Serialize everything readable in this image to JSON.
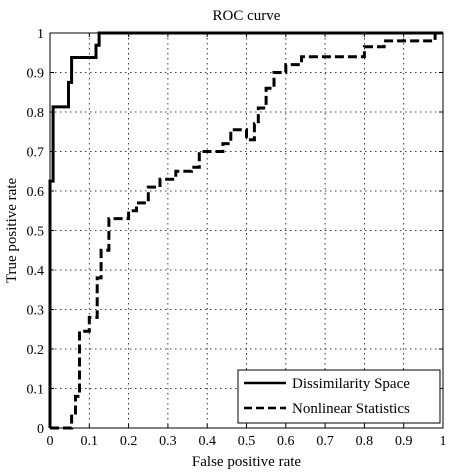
{
  "chart_data": {
    "type": "line",
    "title": "ROC curve",
    "xlabel": "False positive rate",
    "ylabel": "True positive rate",
    "xlim": [
      0,
      1
    ],
    "ylim": [
      0,
      1
    ],
    "grid": true,
    "grid_style": "dotted",
    "legend_position": "bottom-right",
    "x_ticks": [
      0,
      0.1,
      0.2,
      0.3,
      0.4,
      0.5,
      0.6,
      0.7,
      0.8,
      0.9,
      1
    ],
    "x_tick_labels": [
      "0",
      "0.1",
      "0.2",
      "0.3",
      "0.4",
      "0.5",
      "0.6",
      "0.7",
      "0.8",
      "0.9",
      "1"
    ],
    "y_ticks": [
      0,
      0.1,
      0.2,
      0.3,
      0.4,
      0.5,
      0.6,
      0.7,
      0.8,
      0.9,
      1
    ],
    "y_tick_labels": [
      "0",
      "0.1",
      "0.2",
      "0.3",
      "0.4",
      "0.5",
      "0.6",
      "0.7",
      "0.8",
      "0.9",
      "1"
    ],
    "series": [
      {
        "name": "Dissimilarity Space",
        "style": "solid",
        "color": "#000000",
        "points": [
          [
            0,
            0
          ],
          [
            0,
            0.625
          ],
          [
            0.008,
            0.625
          ],
          [
            0.008,
            0.813
          ],
          [
            0.047,
            0.813
          ],
          [
            0.047,
            0.875
          ],
          [
            0.055,
            0.875
          ],
          [
            0.055,
            0.938
          ],
          [
            0.117,
            0.938
          ],
          [
            0.117,
            0.969
          ],
          [
            0.125,
            0.969
          ],
          [
            0.125,
            1
          ],
          [
            1,
            1
          ]
        ]
      },
      {
        "name": "Nonlinear Statistics",
        "style": "dashed",
        "color": "#000000",
        "points": [
          [
            0,
            0
          ],
          [
            0.055,
            0
          ],
          [
            0.055,
            0.03
          ],
          [
            0.065,
            0.03
          ],
          [
            0.065,
            0.08
          ],
          [
            0.075,
            0.08
          ],
          [
            0.075,
            0.245
          ],
          [
            0.1,
            0.245
          ],
          [
            0.1,
            0.28
          ],
          [
            0.12,
            0.28
          ],
          [
            0.12,
            0.38
          ],
          [
            0.13,
            0.38
          ],
          [
            0.13,
            0.45
          ],
          [
            0.15,
            0.45
          ],
          [
            0.15,
            0.53
          ],
          [
            0.2,
            0.53
          ],
          [
            0.2,
            0.55
          ],
          [
            0.22,
            0.55
          ],
          [
            0.22,
            0.57
          ],
          [
            0.25,
            0.57
          ],
          [
            0.25,
            0.61
          ],
          [
            0.28,
            0.61
          ],
          [
            0.28,
            0.63
          ],
          [
            0.32,
            0.63
          ],
          [
            0.32,
            0.65
          ],
          [
            0.36,
            0.65
          ],
          [
            0.36,
            0.66
          ],
          [
            0.38,
            0.66
          ],
          [
            0.38,
            0.7
          ],
          [
            0.44,
            0.7
          ],
          [
            0.44,
            0.72
          ],
          [
            0.46,
            0.72
          ],
          [
            0.46,
            0.755
          ],
          [
            0.5,
            0.755
          ],
          [
            0.5,
            0.73
          ],
          [
            0.52,
            0.73
          ],
          [
            0.52,
            0.77
          ],
          [
            0.53,
            0.77
          ],
          [
            0.53,
            0.81
          ],
          [
            0.55,
            0.81
          ],
          [
            0.55,
            0.86
          ],
          [
            0.57,
            0.86
          ],
          [
            0.57,
            0.9
          ],
          [
            0.6,
            0.9
          ],
          [
            0.6,
            0.92
          ],
          [
            0.64,
            0.92
          ],
          [
            0.64,
            0.94
          ],
          [
            0.8,
            0.94
          ],
          [
            0.8,
            0.965
          ],
          [
            0.85,
            0.965
          ],
          [
            0.85,
            0.98
          ],
          [
            0.98,
            0.98
          ],
          [
            0.98,
            1
          ],
          [
            1,
            1
          ]
        ]
      }
    ]
  }
}
